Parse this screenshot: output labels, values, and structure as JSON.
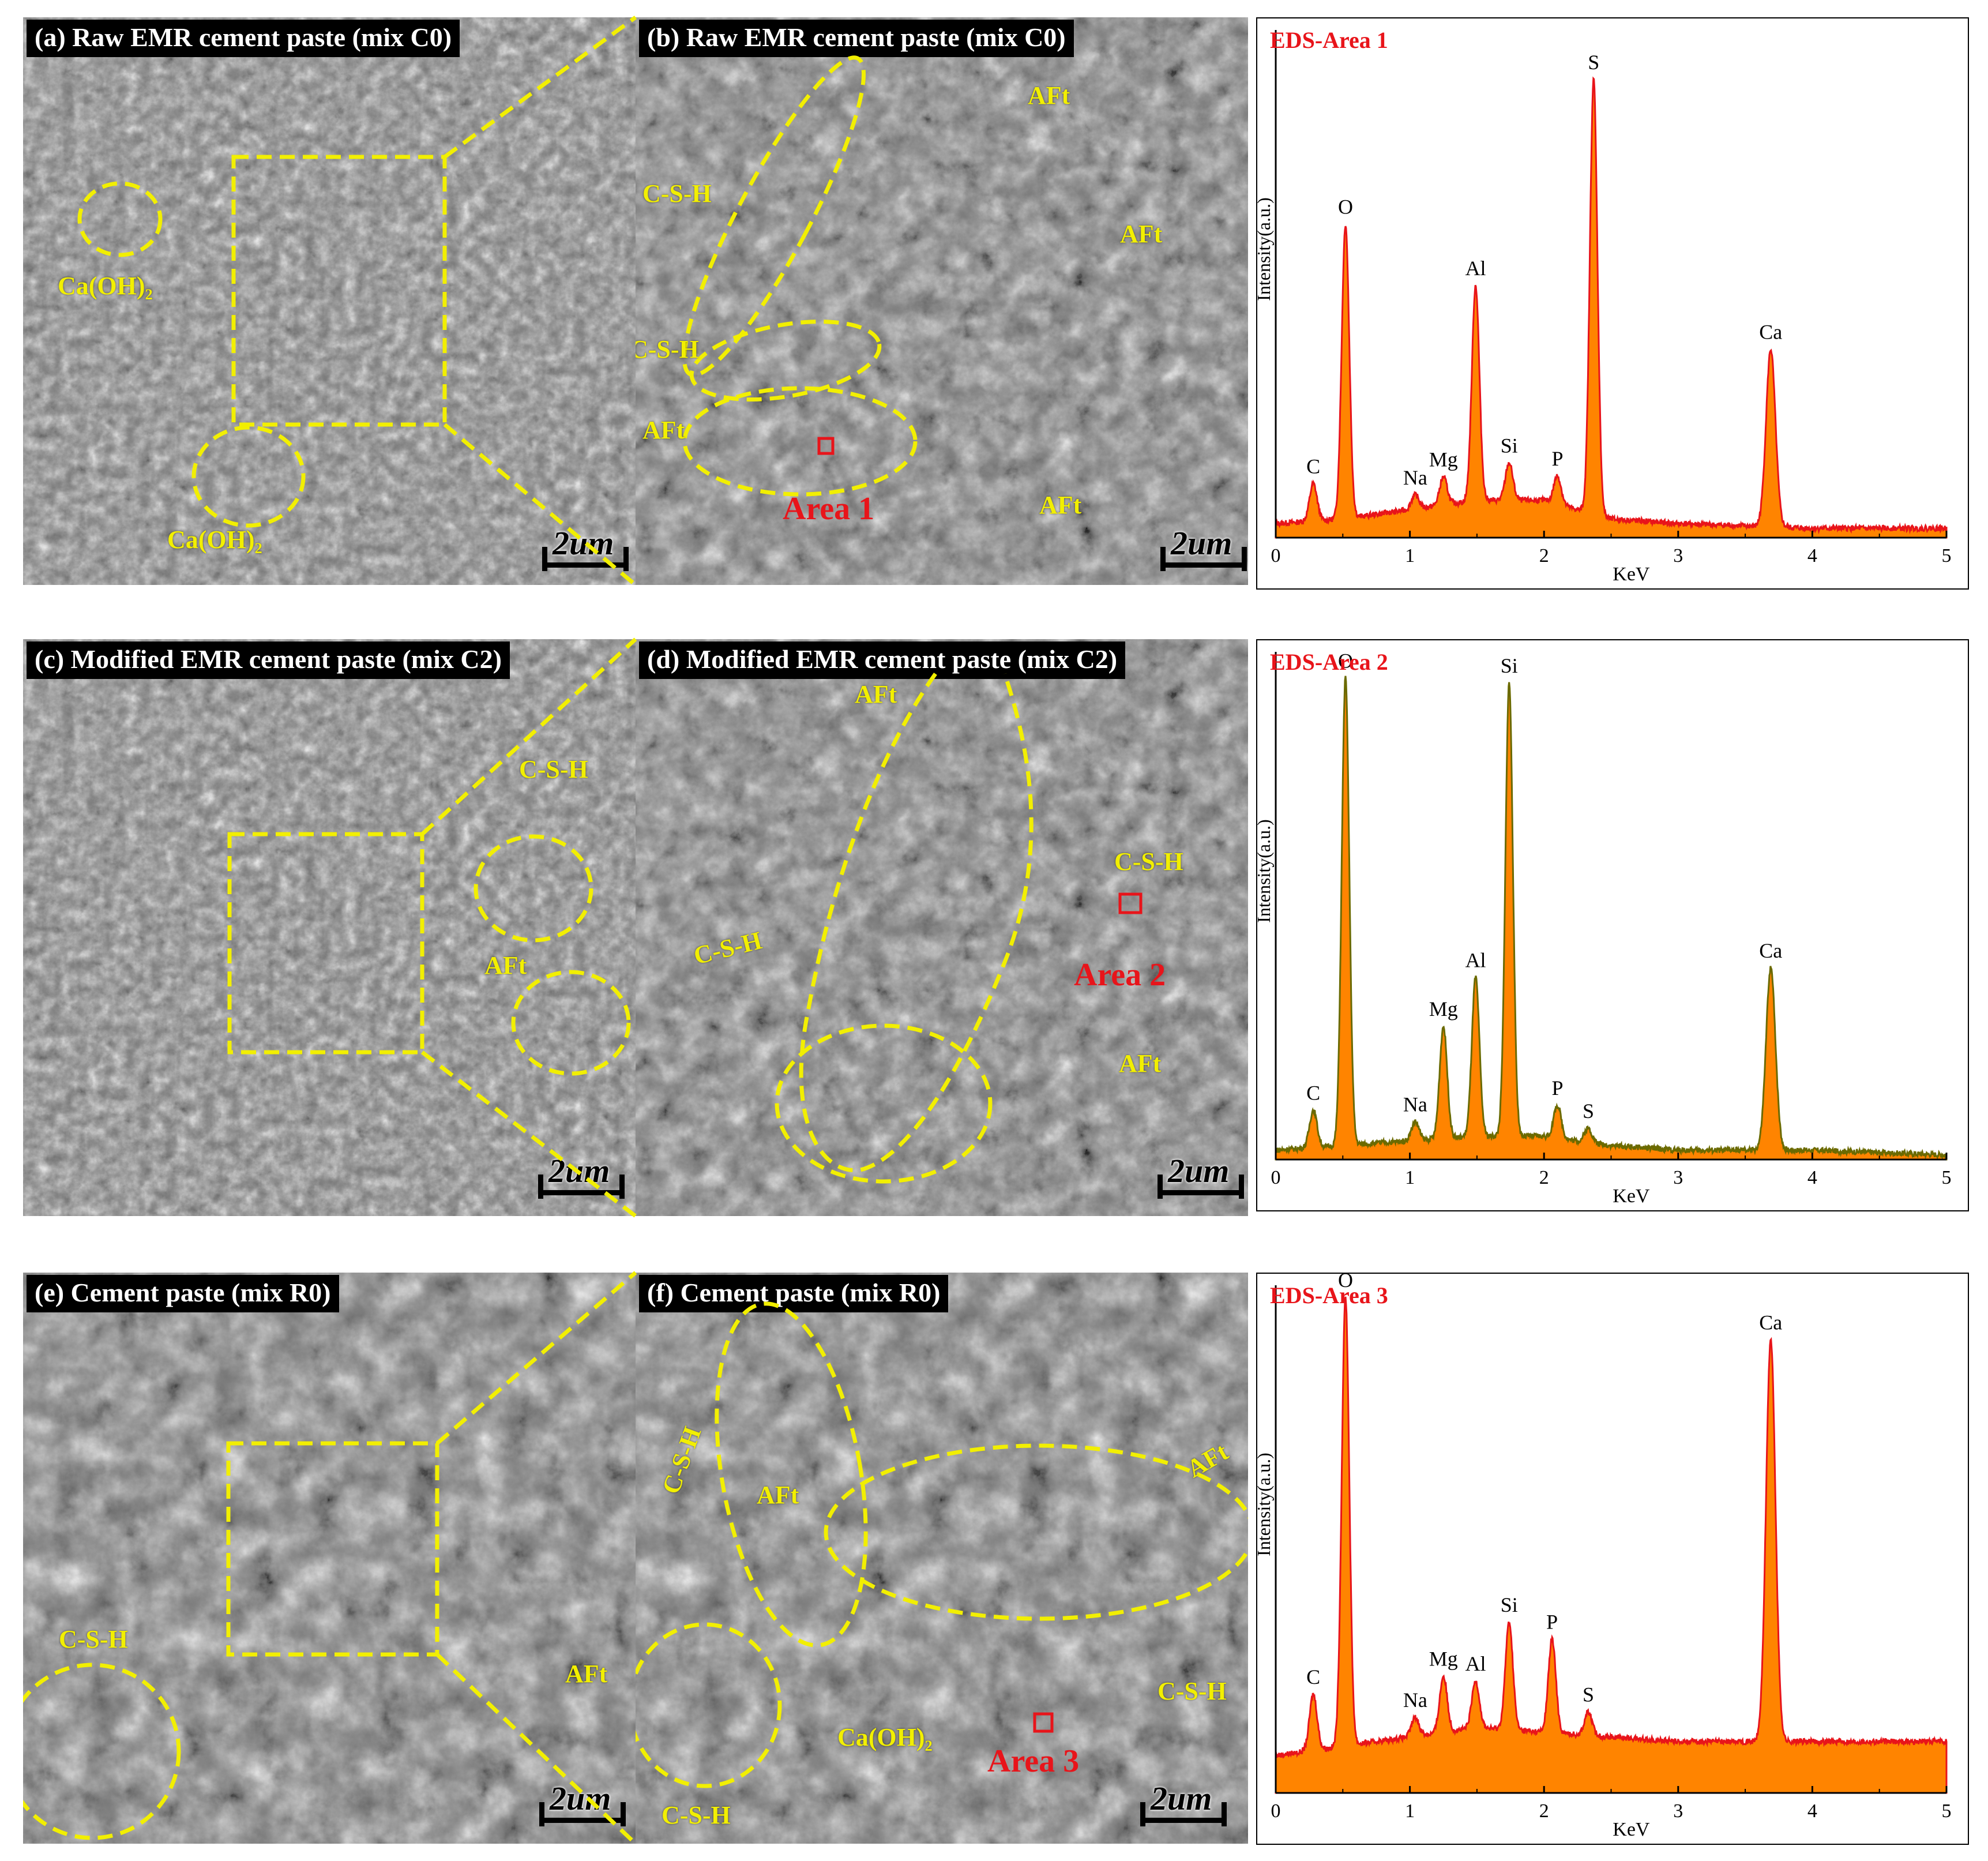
{
  "colors": {
    "annotation": "#f2ef00",
    "area_marker": "#e8141a",
    "spectrum_fill": "#ff8400",
    "spectrum_line_red": "#e8141a",
    "spectrum_line_olive": "#6b6a00"
  },
  "panels": {
    "a": {
      "title": "(a) Raw EMR cement paste (mix C0)",
      "scale": "2um",
      "labels": [
        "Ca(OH)₂",
        "Ca(OH)₂"
      ]
    },
    "b": {
      "title": "(b) Raw EMR cement paste  (mix C0)",
      "scale": "2um",
      "labels": [
        "AFt",
        "AFt",
        "C-S-H",
        "C-S-H",
        "AFt",
        "AFt"
      ],
      "area": "Area 1"
    },
    "c": {
      "title": "(c) Modified EMR cement paste (mix C2)",
      "scale": "2um",
      "labels": [
        "C-S-H",
        "AFt"
      ]
    },
    "d": {
      "title": "(d) Modified EMR cement paste (mix C2)",
      "scale": "2um",
      "labels": [
        "AFt",
        "C-S-H",
        "C-S-H",
        "AFt"
      ],
      "area": "Area 2"
    },
    "e": {
      "title": "(e) Cement paste (mix R0)",
      "scale": "2um",
      "labels": [
        "C-S-H",
        "AFt"
      ]
    },
    "f": {
      "title": "(f) Cement paste (mix R0)",
      "scale": "2um",
      "labels": [
        "C-S-H",
        "AFt",
        "AFt",
        "C-S-H",
        "Ca(OH)₂",
        "C-S-H"
      ],
      "area": "Area 3"
    }
  },
  "eds": [
    {
      "title": "EDS-Area 1",
      "ylabel": "Intensity(a.u.)",
      "xlabel": "KeV",
      "xticks": [
        "0",
        "1",
        "2",
        "3",
        "4",
        "5"
      ]
    },
    {
      "title": "EDS-Area 2",
      "ylabel": "Intensity(a.u.)",
      "xlabel": "KeV",
      "xticks": [
        "0",
        "1",
        "2",
        "3",
        "4",
        "5"
      ]
    },
    {
      "title": "EDS-Area 3",
      "ylabel": "Intensity(a.u.)",
      "xlabel": "KeV",
      "xticks": [
        "0",
        "1",
        "2",
        "3",
        "4",
        "5"
      ]
    }
  ],
  "chart_data": [
    {
      "type": "area",
      "title": "EDS-Area 1",
      "xlabel": "KeV",
      "ylabel": "Intensity(a.u.)",
      "xlim": [
        0,
        5
      ],
      "line_color": "#e8141a",
      "baseline": [
        [
          0,
          3
        ],
        [
          0.5,
          4
        ],
        [
          1,
          6
        ],
        [
          1.5,
          8
        ],
        [
          2,
          8
        ],
        [
          2.5,
          4
        ],
        [
          3,
          3
        ],
        [
          4,
          2
        ],
        [
          5,
          2
        ]
      ],
      "peaks": [
        {
          "element": "C",
          "kev": 0.28,
          "intensity": 8
        },
        {
          "element": "O",
          "kev": 0.52,
          "intensity": 63
        },
        {
          "element": "Na",
          "kev": 1.04,
          "intensity": 3
        },
        {
          "element": "Mg",
          "kev": 1.25,
          "intensity": 6
        },
        {
          "element": "Al",
          "kev": 1.49,
          "intensity": 46
        },
        {
          "element": "Si",
          "kev": 1.74,
          "intensity": 8
        },
        {
          "element": "P",
          "kev": 2.1,
          "intensity": 6
        },
        {
          "element": "S",
          "kev": 2.37,
          "intensity": 93
        },
        {
          "element": "Ca",
          "kev": 3.69,
          "intensity": 38
        }
      ]
    },
    {
      "type": "area",
      "title": "EDS-Area 2",
      "xlabel": "KeV",
      "ylabel": "Intensity(a.u.)",
      "xlim": [
        0,
        5
      ],
      "line_color": "#6b6a00",
      "baseline": [
        [
          0,
          2
        ],
        [
          0.5,
          3
        ],
        [
          1,
          4
        ],
        [
          1.5,
          5
        ],
        [
          2,
          5
        ],
        [
          2.5,
          3
        ],
        [
          3,
          2
        ],
        [
          4,
          2
        ],
        [
          5,
          1
        ]
      ],
      "peaks": [
        {
          "element": "C",
          "kev": 0.28,
          "intensity": 8
        },
        {
          "element": "O",
          "kev": 0.52,
          "intensity": 100
        },
        {
          "element": "Na",
          "kev": 1.04,
          "intensity": 4
        },
        {
          "element": "Mg",
          "kev": 1.25,
          "intensity": 24
        },
        {
          "element": "Al",
          "kev": 1.49,
          "intensity": 34
        },
        {
          "element": "Si",
          "kev": 1.74,
          "intensity": 97
        },
        {
          "element": "P",
          "kev": 2.1,
          "intensity": 7
        },
        {
          "element": "S",
          "kev": 2.33,
          "intensity": 3
        },
        {
          "element": "Ca",
          "kev": 3.69,
          "intensity": 39
        }
      ]
    },
    {
      "type": "area",
      "title": "EDS-Area 3",
      "xlabel": "KeV",
      "ylabel": "Intensity(a.u.)",
      "xlim": [
        0,
        5
      ],
      "line_color": "#e8141a",
      "baseline": [
        [
          0,
          8
        ],
        [
          0.5,
          10
        ],
        [
          1,
          12
        ],
        [
          1.5,
          14
        ],
        [
          2,
          13
        ],
        [
          2.5,
          12
        ],
        [
          3,
          11
        ],
        [
          4,
          11
        ],
        [
          5,
          11
        ]
      ],
      "peaks": [
        {
          "element": "C",
          "kev": 0.28,
          "intensity": 12
        },
        {
          "element": "O",
          "kev": 0.52,
          "intensity": 96
        },
        {
          "element": "Na",
          "kev": 1.04,
          "intensity": 4
        },
        {
          "element": "Mg",
          "kev": 1.25,
          "intensity": 12
        },
        {
          "element": "Al",
          "kev": 1.49,
          "intensity": 10
        },
        {
          "element": "Si",
          "kev": 1.74,
          "intensity": 23
        },
        {
          "element": "P",
          "kev": 2.06,
          "intensity": 20
        },
        {
          "element": "S",
          "kev": 2.33,
          "intensity": 5
        },
        {
          "element": "Ca",
          "kev": 3.69,
          "intensity": 86
        }
      ]
    }
  ]
}
